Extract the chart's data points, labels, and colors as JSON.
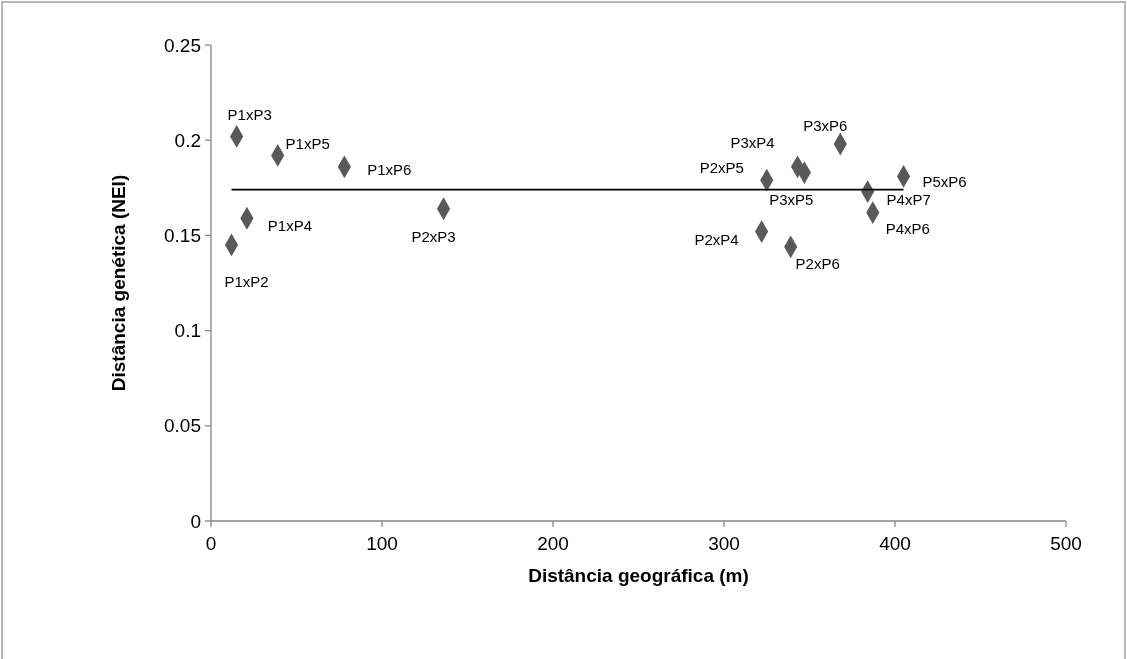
{
  "chart_data": {
    "type": "scatter",
    "xlabel": "Distância geográfica (m)",
    "ylabel": "Distância genética (NEI)",
    "xlim": [
      0,
      500
    ],
    "xticks": [
      0,
      100,
      200,
      300,
      400,
      500
    ],
    "ylim": [
      0,
      0.25
    ],
    "yticks": [
      0,
      0.05,
      0.1,
      0.15,
      0.2,
      0.25
    ],
    "grid": false,
    "series": [
      {
        "color": "#595959",
        "marker": "diamond",
        "x": [
          15,
          39,
          78,
          21,
          12,
          136,
          325,
          343,
          347,
          368,
          384,
          405,
          387,
          322,
          339
        ],
        "values": [
          0.202,
          0.192,
          0.186,
          0.159,
          0.145,
          0.164,
          0.179,
          0.186,
          0.183,
          0.198,
          0.173,
          0.181,
          0.162,
          0.152,
          0.144
        ],
        "value_labels": [
          "P1xP3",
          "P1xP5",
          "P1xP6",
          "P1xP4",
          "P1xP2",
          "P2xP3",
          "P2xP5",
          "P3xP4",
          "P3xP5",
          "P3xP6",
          "P4xP7",
          "P5xP6",
          "P4xP6",
          "P2xP4",
          "P2xP6"
        ]
      },
      {
        "type": "line",
        "color": "#000000",
        "line_style": "solid",
        "marker": "none",
        "x": [
          12,
          405
        ],
        "values": [
          0.174,
          0.174
        ]
      }
    ]
  }
}
